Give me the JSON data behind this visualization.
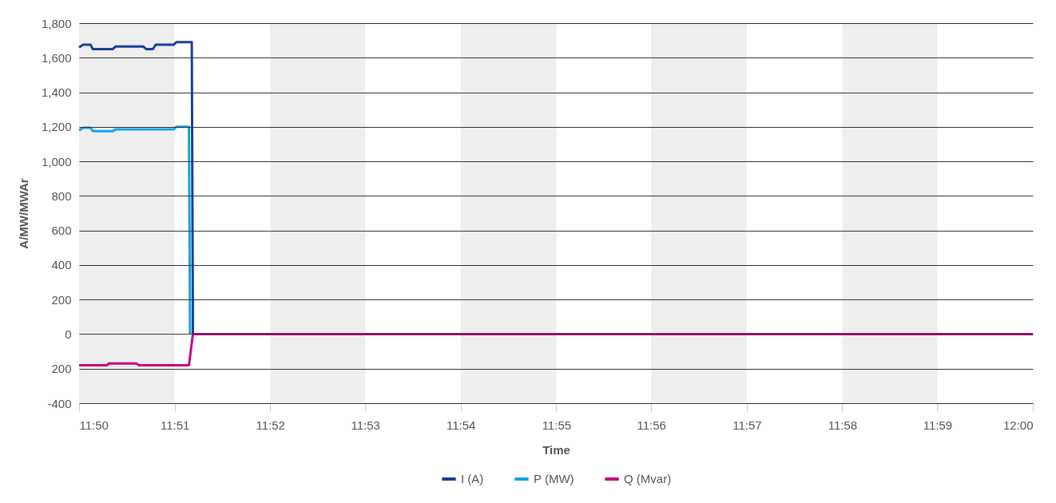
{
  "chart_data": {
    "type": "line",
    "xlabel": "Time",
    "ylabel": "A/MW/MWAr",
    "xlim": [
      11.8333,
      12
    ],
    "xticks": [
      {
        "value": 11.8333,
        "label": "11:50"
      },
      {
        "value": 11.85,
        "label": "11:51"
      },
      {
        "value": 11.8667,
        "label": "11:52"
      },
      {
        "value": 11.8833,
        "label": "11:53"
      },
      {
        "value": 11.9,
        "label": "11:54"
      },
      {
        "value": 11.9167,
        "label": "11:55"
      },
      {
        "value": 11.9333,
        "label": "11:56"
      },
      {
        "value": 11.95,
        "label": "11:57"
      },
      {
        "value": 11.9667,
        "label": "11:58"
      },
      {
        "value": 11.9833,
        "label": "11:59"
      },
      {
        "value": 12,
        "label": "12:00"
      }
    ],
    "ylim": [
      -400,
      1800
    ],
    "yticks": [
      {
        "value": -400,
        "label": "-400"
      },
      {
        "value": -200,
        "label": "200"
      },
      {
        "value": 0,
        "label": "0"
      },
      {
        "value": 200,
        "label": "200"
      },
      {
        "value": 400,
        "label": "400"
      },
      {
        "value": 600,
        "label": "600"
      },
      {
        "value": 800,
        "label": "800"
      },
      {
        "value": 1000,
        "label": "1,000"
      },
      {
        "value": 1200,
        "label": "1,200"
      },
      {
        "value": 1400,
        "label": "1,400"
      },
      {
        "value": 1600,
        "label": "1,600"
      },
      {
        "value": 1800,
        "label": "1,800"
      }
    ],
    "grid": "y",
    "legend": "bottom",
    "bands": [
      {
        "axis": "x",
        "from": 11.8333,
        "to": 11.85,
        "color": "#eeeeee"
      },
      {
        "axis": "x",
        "from": 11.8667,
        "to": 11.8833,
        "color": "#eeeeee"
      },
      {
        "axis": "x",
        "from": 11.9,
        "to": 11.9167,
        "color": "#eeeeee"
      },
      {
        "axis": "x",
        "from": 11.9333,
        "to": 11.95,
        "color": "#eeeeee"
      },
      {
        "axis": "x",
        "from": 11.9667,
        "to": 11.9833,
        "color": "#eeeeee"
      }
    ],
    "series": [
      {
        "name": "I (A)",
        "color": "#1a3f96",
        "x": [
          11.8333,
          11.834,
          11.8353,
          11.8357,
          11.8392,
          11.8397,
          11.8445,
          11.845,
          11.8462,
          11.8467,
          11.8498,
          11.8503,
          11.853,
          11.8532
        ],
        "values": [
          1660,
          1675,
          1675,
          1650,
          1650,
          1665,
          1665,
          1650,
          1650,
          1675,
          1675,
          1690,
          1690,
          0
        ]
      },
      {
        "name": "P (MW)",
        "color": "#0ea5e4",
        "x": [
          11.8333,
          11.834,
          11.8353,
          11.8357,
          11.8392,
          11.8397,
          11.8498,
          11.8503,
          11.8525,
          11.8527
        ],
        "values": [
          1180,
          1195,
          1195,
          1175,
          1175,
          1185,
          1185,
          1200,
          1200,
          0
        ]
      },
      {
        "name": "Q (Mvar)",
        "color": "#c4087f",
        "x": [
          11.8333,
          11.8382,
          11.8385,
          11.8433,
          11.8438,
          11.8525,
          11.8532,
          12
        ],
        "values": [
          -180,
          -180,
          -170,
          -170,
          -180,
          -180,
          0,
          0
        ]
      }
    ]
  }
}
